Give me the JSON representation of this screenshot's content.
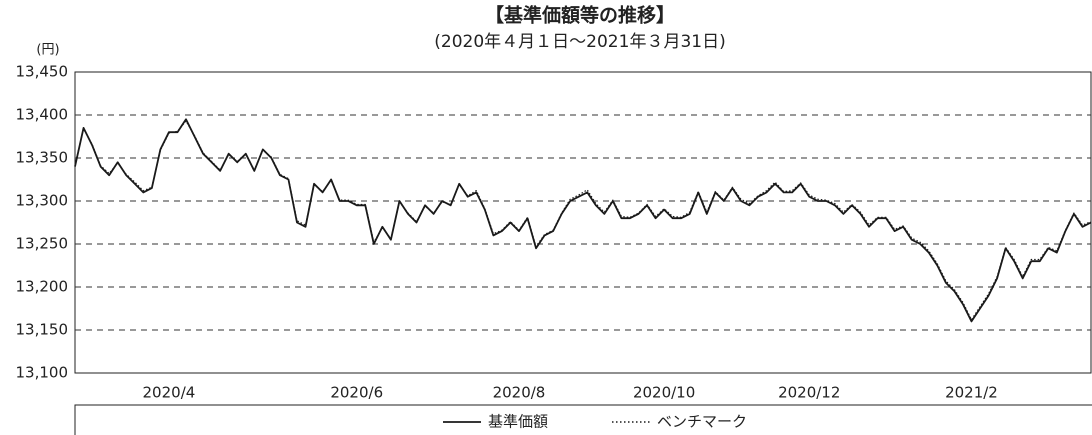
{
  "chart_data": {
    "type": "line",
    "title": "【基準価額等の推移】",
    "subtitle": "(2020年４月１日～2021年３月31日)",
    "y_unit": "(円)",
    "categories": [
      null,
      null,
      null,
      null,
      null,
      null,
      null,
      null,
      null,
      null,
      null,
      "2020/4",
      null,
      null,
      null,
      null,
      null,
      null,
      null,
      null,
      null,
      null,
      null,
      null,
      null,
      null,
      null,
      null,
      null,
      null,
      null,
      null,
      null,
      "2020/6",
      null,
      null,
      null,
      null,
      null,
      null,
      null,
      null,
      null,
      null,
      null,
      null,
      null,
      null,
      null,
      null,
      null,
      null,
      "2020/8",
      null,
      null,
      null,
      null,
      null,
      null,
      null,
      null,
      null,
      null,
      null,
      null,
      null,
      null,
      null,
      null,
      "2020/10",
      null,
      null,
      null,
      null,
      null,
      null,
      null,
      null,
      null,
      null,
      null,
      null,
      null,
      null,
      null,
      null,
      "2020/12",
      null,
      null,
      null,
      null,
      null,
      null,
      null,
      null,
      null,
      null,
      null,
      null,
      null,
      null,
      null,
      null,
      null,
      null,
      "2021/2",
      null,
      null,
      null,
      null,
      null,
      null,
      null,
      null,
      null,
      null,
      null,
      null,
      null,
      null
    ],
    "series": [
      {
        "name": "基準価額",
        "color": "#1a1a1a",
        "style": "solid",
        "values": [
          13340,
          13385,
          13365,
          13340,
          13330,
          13345,
          13330,
          13320,
          13310,
          13315,
          13360,
          13380,
          13380,
          13395,
          13375,
          13355,
          13345,
          13335,
          13355,
          13345,
          13355,
          13335,
          13360,
          13350,
          13330,
          13325,
          13275,
          13270,
          13320,
          13310,
          13325,
          13300,
          13300,
          13295,
          13295,
          13250,
          13270,
          13255,
          13300,
          13285,
          13275,
          13295,
          13285,
          13300,
          13295,
          13320,
          13305,
          13310,
          13290,
          13260,
          13265,
          13275,
          13265,
          13280,
          13245,
          13260,
          13265,
          13285,
          13300,
          13305,
          13310,
          13295,
          13285,
          13300,
          13280,
          13280,
          13285,
          13295,
          13280,
          13290,
          13280,
          13280,
          13285,
          13310,
          13285,
          13310,
          13300,
          13315,
          13300,
          13295,
          13305,
          13310,
          13320,
          13310,
          13310,
          13320,
          13305,
          13300,
          13300,
          13295,
          13285,
          13295,
          13285,
          13270,
          13280,
          13280,
          13265,
          13270,
          13255,
          13250,
          13240,
          13225,
          13205,
          13195,
          13180,
          13160,
          13175,
          13190,
          13210,
          13245,
          13230,
          13210,
          13230,
          13230,
          13245,
          13240,
          13265,
          13285,
          13270,
          13275
        ]
      },
      {
        "name": "ベンチマーク",
        "color": "#1a1a1a",
        "style": "dotted",
        "values": [
          13342,
          13384,
          13366,
          13341,
          13332,
          13344,
          13331,
          13322,
          13312,
          13316,
          13359,
          13379,
          13381,
          13393,
          13376,
          13356,
          13346,
          13336,
          13354,
          13346,
          13354,
          13336,
          13359,
          13351,
          13331,
          13326,
          13277,
          13272,
          13319,
          13311,
          13324,
          13301,
          13301,
          13296,
          13296,
          13252,
          13269,
          13256,
          13299,
          13286,
          13276,
          13294,
          13286,
          13299,
          13296,
          13319,
          13306,
          13312,
          13291,
          13262,
          13266,
          13276,
          13266,
          13281,
          13247,
          13261,
          13266,
          13286,
          13302,
          13307,
          13313,
          13297,
          13287,
          13301,
          13282,
          13281,
          13286,
          13296,
          13282,
          13291,
          13282,
          13281,
          13287,
          13311,
          13287,
          13311,
          13301,
          13316,
          13302,
          13297,
          13306,
          13312,
          13322,
          13311,
          13312,
          13321,
          13307,
          13302,
          13301,
          13297,
          13287,
          13296,
          13287,
          13272,
          13281,
          13281,
          13267,
          13271,
          13257,
          13252,
          13242,
          13227,
          13207,
          13197,
          13182,
          13162,
          13177,
          13192,
          13212,
          13246,
          13232,
          13212,
          13232,
          13232,
          13246,
          13242,
          13266,
          13286,
          13272,
          13276
        ]
      }
    ],
    "ylim": [
      13100,
      13450
    ],
    "yticks": [
      {
        "value": 13100,
        "label": "13,100"
      },
      {
        "value": 13150,
        "label": "13,150"
      },
      {
        "value": 13200,
        "label": "13,200"
      },
      {
        "value": 13250,
        "label": "13,250"
      },
      {
        "value": 13300,
        "label": "13,300"
      },
      {
        "value": 13350,
        "label": "13,350"
      },
      {
        "value": 13400,
        "label": "13,400"
      },
      {
        "value": 13450,
        "label": "13,450"
      }
    ],
    "grid": true,
    "legend": "bottom"
  }
}
